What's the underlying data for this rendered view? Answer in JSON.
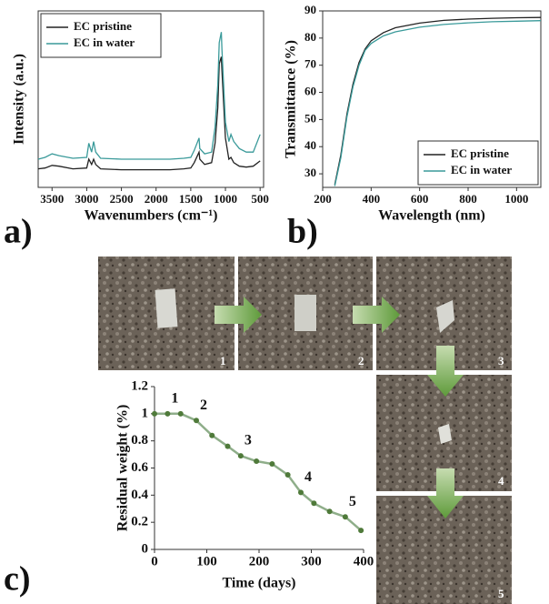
{
  "chart_data": [
    {
      "type": "line",
      "panel_label": "a)",
      "xlabel": "Wavenumbers (cm⁻¹)",
      "ylabel": "Intensity (a.u.)",
      "x": [
        3700,
        3600,
        3500,
        3400,
        3200,
        3000,
        2970,
        2930,
        2900,
        2870,
        2800,
        2500,
        2000,
        1800,
        1600,
        1500,
        1450,
        1380,
        1370,
        1300,
        1200,
        1150,
        1110,
        1090,
        1060,
        1050,
        1000,
        950,
        920,
        880,
        800,
        700,
        600,
        500
      ],
      "series": [
        {
          "name": "EC pristine",
          "color": "#222222",
          "values": [
            10.5,
            11,
            12.5,
            12,
            10.5,
            11,
            16,
            13,
            16,
            13,
            10.5,
            10,
            10,
            10,
            10.5,
            11,
            14,
            20,
            16,
            13,
            14,
            25,
            45,
            70,
            74,
            66,
            28,
            16,
            17,
            14,
            12,
            11.5,
            12,
            15
          ]
        },
        {
          "name": "EC in water",
          "color": "#3a9a9a",
          "values": [
            16,
            17,
            19,
            18,
            16.5,
            17,
            25,
            20,
            26,
            20,
            16.5,
            16,
            16,
            16,
            16.5,
            17,
            21,
            28,
            22,
            19,
            20,
            34,
            58,
            82,
            88,
            78,
            37,
            26,
            30,
            26,
            22,
            20,
            20,
            30
          ]
        }
      ],
      "xlim": [
        3700,
        450
      ],
      "xticks": [
        3500,
        3000,
        2500,
        2000,
        1500,
        1000,
        500
      ],
      "ylim": [
        0,
        100
      ],
      "legend": "upper left",
      "grid": false
    },
    {
      "type": "line",
      "panel_label": "b)",
      "xlabel": "Wavelength (nm)",
      "ylabel": "Transmittance (%)",
      "x": [
        250,
        275,
        300,
        325,
        350,
        375,
        400,
        450,
        500,
        600,
        700,
        800,
        900,
        1000,
        1100
      ],
      "series": [
        {
          "name": "EC pristine",
          "color": "#222222",
          "values": [
            26,
            37,
            52,
            63,
            71,
            76,
            79,
            82,
            83.8,
            85.5,
            86.5,
            87,
            87.3,
            87.5,
            87.6
          ]
        },
        {
          "name": "EC in water",
          "color": "#3a9a9a",
          "values": [
            25.5,
            36,
            51,
            62,
            70,
            75.5,
            78,
            80.8,
            82.3,
            84,
            85,
            85.6,
            86,
            86.2,
            86.4
          ]
        }
      ],
      "xlim": [
        200,
        1100
      ],
      "xticks": [
        200,
        400,
        600,
        800,
        1000
      ],
      "ylim": [
        25,
        90
      ],
      "yticks": [
        30,
        40,
        50,
        60,
        70,
        80,
        90
      ],
      "legend": "lower right",
      "grid": false
    },
    {
      "type": "line",
      "panel_label": "c)",
      "xlabel": "Time (days)",
      "ylabel": "Residual weight (%)",
      "x": [
        0,
        25,
        50,
        80,
        110,
        140,
        165,
        195,
        225,
        255,
        280,
        305,
        335,
        365,
        395
      ],
      "series": [
        {
          "color": "#8fae8a",
          "marker_color": "#4f7a3a",
          "values": [
            1,
            1,
            1,
            0.95,
            0.84,
            0.76,
            0.69,
            0.65,
            0.63,
            0.55,
            0.42,
            0.34,
            0.28,
            0.24,
            0.14
          ]
        }
      ],
      "annotations": [
        {
          "text": "1",
          "index": 1
        },
        {
          "text": "2",
          "index": 3
        },
        {
          "text": "3",
          "index": 6
        },
        {
          "text": "4",
          "index": 10
        },
        {
          "text": "5",
          "index": 13
        }
      ],
      "xlim": [
        0,
        400
      ],
      "xticks": [
        0,
        100,
        200,
        300,
        400
      ],
      "ylim": [
        0,
        1.2
      ],
      "yticks": [
        0,
        0.2,
        0.4,
        0.6,
        0.8,
        1,
        1.2
      ],
      "markers": true,
      "grid": false
    }
  ],
  "photos": {
    "labels": [
      "1",
      "2",
      "3",
      "4",
      "5"
    ]
  }
}
